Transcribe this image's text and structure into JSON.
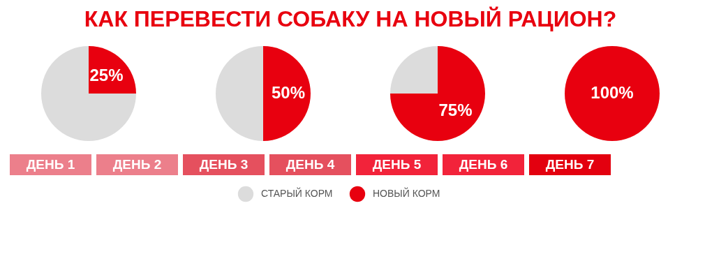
{
  "chart_data": [
    {
      "type": "pie",
      "title": "КАК ПЕРЕВЕСТИ СОБАКУ НА НОВЫЙ РАЦИОН?",
      "categories": [
        "СТАРЫЙ КОРМ",
        "НОВЫЙ КОРМ"
      ],
      "values": [
        75,
        25
      ],
      "colors": [
        "#dcdcdc",
        "#e8000f"
      ],
      "value_labels": [
        null,
        "25%"
      ],
      "legend": "bottom",
      "annotations": [
        "ДЕНЬ 1",
        "ДЕНЬ 2",
        "ДЕНЬ 3",
        "ДЕНЬ 4",
        "ДЕНЬ 5",
        "ДЕНЬ 6",
        "ДЕНЬ 7"
      ]
    },
    {
      "type": "pie",
      "values": [
        50,
        50
      ],
      "colors": [
        "#dcdcdc",
        "#e8000f"
      ],
      "value_labels": [
        null,
        "50%"
      ]
    },
    {
      "type": "pie",
      "values": [
        25,
        75
      ],
      "colors": [
        "#dcdcdc",
        "#e8000f"
      ],
      "value_labels": [
        null,
        "75%"
      ]
    },
    {
      "type": "pie",
      "values": [
        0,
        100
      ],
      "colors": [
        "#dcdcdc",
        "#e8000f"
      ],
      "value_labels": [
        null,
        "100%"
      ]
    }
  ]
}
